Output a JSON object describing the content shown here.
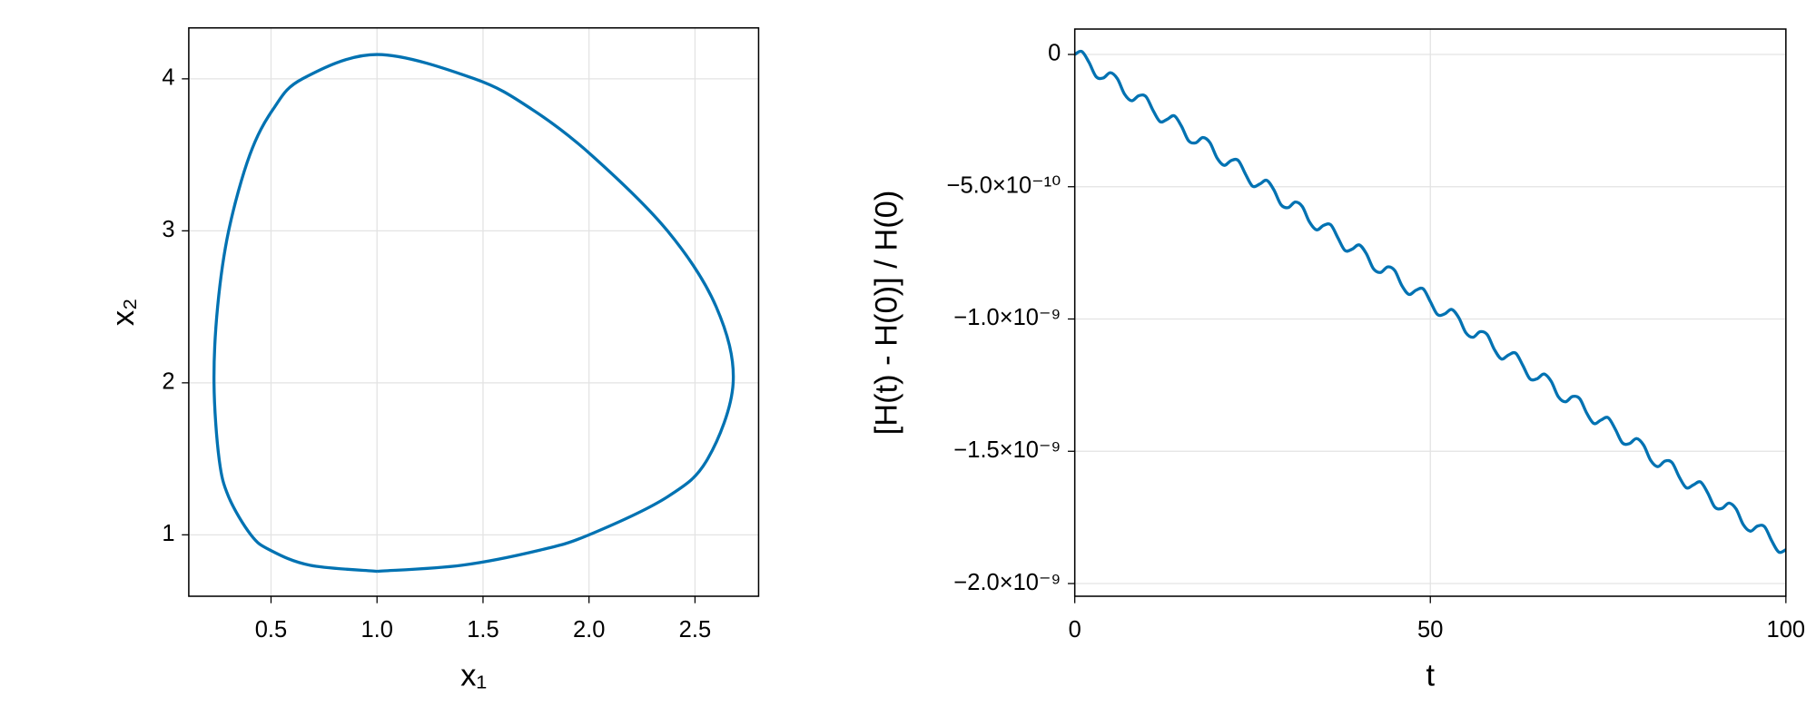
{
  "chart_data": [
    {
      "type": "line",
      "color": "#0072b2",
      "grid": true,
      "xlabel": "x₁",
      "ylabel": "x₂",
      "x": [
        1,
        1.4,
        1.77,
        2.0,
        2.37,
        2.56,
        2.68,
        2.6,
        2.37,
        2.01,
        1.73,
        1.46,
        1,
        0.648,
        0.51,
        0.4,
        0.3,
        0.248,
        0.231,
        0.255,
        0.3,
        0.405,
        0.495,
        0.684,
        1
      ],
      "values": [
        0.76,
        0.8,
        0.9,
        1.0,
        1.25,
        1.5,
        2,
        2.5,
        3,
        3.5,
        3.8,
        4.0,
        4.16,
        4.0,
        3.8,
        3.5,
        3,
        2.5,
        2,
        1.5,
        1.25,
        1.0,
        0.9,
        0.8,
        0.76
      ],
      "xlim": [
        0.112,
        2.8
      ],
      "ylim": [
        0.596,
        4.335
      ],
      "xticks": [
        0.5,
        {
          "value": 1,
          "label": "1.0"
        },
        1.5,
        {
          "value": 2,
          "label": "2.0"
        },
        2.5
      ],
      "yticks": [
        1,
        2,
        3,
        4
      ]
    },
    {
      "type": "line",
      "color": "#0072b2",
      "grid": true,
      "xlabel": "t",
      "ylabel": "[H(t) - H(0)] / H(0)",
      "x": [
        0,
        1,
        2,
        3,
        4,
        5,
        6,
        7,
        8,
        9,
        10,
        11,
        12,
        13,
        14,
        15,
        16,
        17,
        18,
        19,
        20,
        21,
        22,
        23,
        24,
        25,
        26,
        27,
        28,
        29,
        30,
        31,
        32,
        33,
        34,
        35,
        36,
        37,
        38,
        39,
        40,
        41,
        42,
        43,
        44,
        45,
        46,
        47,
        48,
        49,
        50,
        51,
        52,
        53,
        54,
        55,
        56,
        57,
        58,
        59,
        60,
        61,
        62,
        63,
        64,
        65,
        66,
        67,
        68,
        69,
        70,
        71,
        72,
        73,
        74,
        75,
        76,
        77,
        78,
        79,
        80,
        81,
        82,
        83,
        84,
        85,
        86,
        87,
        88,
        89,
        90,
        91,
        92,
        93,
        94,
        95,
        96,
        97,
        98,
        99,
        100
      ],
      "values": [
        0,
        1.1e-11,
        -3e-11,
        -8.4e-11,
        -8.9e-11,
        -6.9e-11,
        -9.2e-11,
        -1.5e-10,
        -1.75e-10,
        -1.56e-10,
        -1.59e-10,
        -2.11e-10,
        -2.54e-10,
        -2.45e-10,
        -2.32e-10,
        -2.71e-10,
        -3.26e-10,
        -3.34e-10,
        -3.14e-10,
        -3.33e-10,
        -3.91e-10,
        -4.19e-10,
        -4.01e-10,
        -4.01e-10,
        -4.52e-10,
        -4.98e-10,
        -4.9e-10,
        -4.76e-10,
        -5.12e-10,
        -5.68e-10,
        -5.79e-10,
        -5.58e-10,
        -5.75e-10,
        -6.33e-10,
        -6.63e-10,
        -6.46e-10,
        -6.44e-10,
        -6.93e-10,
        -7.41e-10,
        -7.36e-10,
        -7.2e-10,
        -7.53e-10,
        -8.1e-10,
        -8.24e-10,
        -8.03e-10,
        -8.17e-10,
        -8.74e-10,
        -9.07e-10,
        -8.91e-10,
        -8.86e-10,
        -9.34e-10,
        -9.83e-10,
        -9.81e-10,
        -9.64e-10,
        -9.95e-10,
        -1.052e-09,
        -1.069e-09,
        -1.048e-09,
        -1.059e-09,
        -1.115e-09,
        -1.151e-09,
        -1.136e-09,
        -1.129e-09,
        -1.175e-09,
        -1.226e-09,
        -1.226e-09,
        -1.208e-09,
        -1.236e-09,
        -1.294e-09,
        -1.313e-09,
        -1.293e-09,
        -1.301e-09,
        -1.356e-09,
        -1.395e-09,
        -1.382e-09,
        -1.373e-09,
        -1.416e-09,
        -1.468e-09,
        -1.471e-09,
        -1.452e-09,
        -1.477e-09,
        -1.535e-09,
        -1.558e-09,
        -1.537e-09,
        -1.543e-09,
        -1.597e-09,
        -1.638e-09,
        -1.627e-09,
        -1.616e-09,
        -1.657e-09,
        -1.711e-09,
        -1.716e-09,
        -1.696e-09,
        -1.718e-09,
        -1.777e-09,
        -1.802e-09,
        -1.783e-09,
        -1.785e-09,
        -1.838e-09,
        -1.881e-09,
        -1.872e-09
      ],
      "xlim": [
        0,
        100
      ],
      "ylim": [
        -2.048e-09,
        9.6e-11
      ],
      "xticks": [
        0,
        50,
        100
      ],
      "yticks": [
        0,
        {
          "value": -5e-10,
          "label": "−5.0×10⁻¹⁰"
        },
        {
          "value": -1e-09,
          "label": "−1.0×10⁻⁹"
        },
        {
          "value": -1.5e-09,
          "label": "−1.5×10⁻⁹"
        },
        {
          "value": -2e-09,
          "label": "−2.0×10⁻⁹"
        }
      ]
    }
  ]
}
